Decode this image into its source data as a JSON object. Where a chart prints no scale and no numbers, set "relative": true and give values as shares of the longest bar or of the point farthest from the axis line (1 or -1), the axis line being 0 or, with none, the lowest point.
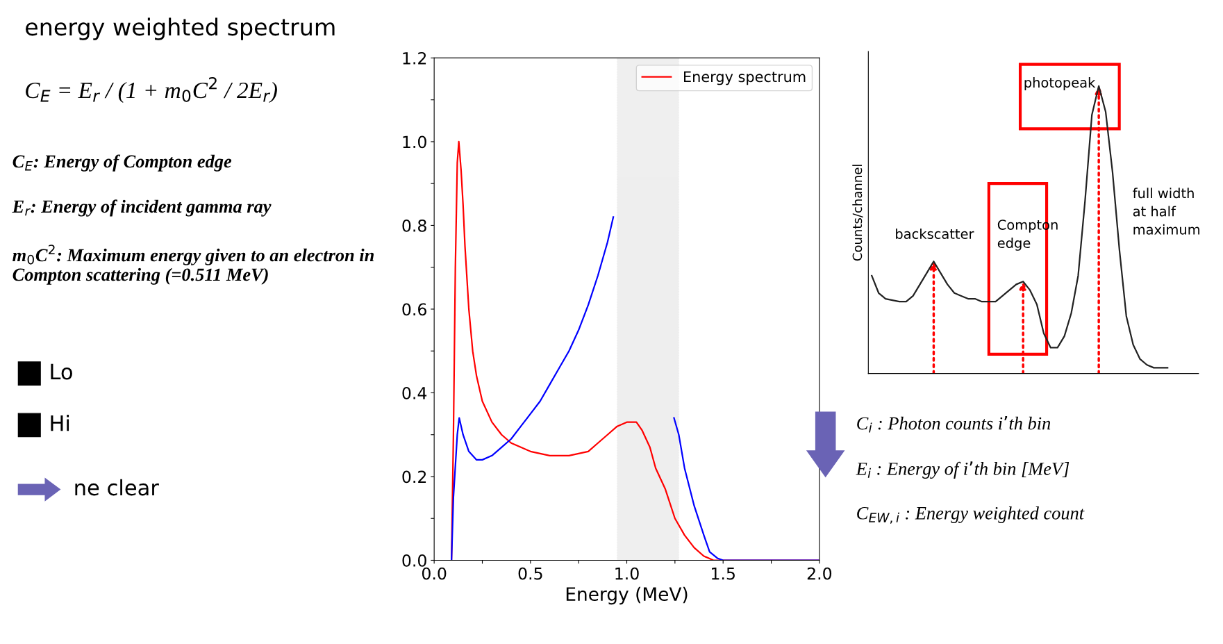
{
  "chart_data": [
    {
      "type": "line",
      "title": "energy weighted spectrum",
      "xlabel": "Energy (MeV)",
      "xlim": [
        0,
        2
      ],
      "ylim": [
        0,
        1.2
      ],
      "xticks": [
        {
          "value": 0,
          "label": "0.0"
        },
        {
          "value": 0.25,
          "label": null
        },
        0.5,
        {
          "value": 0.75,
          "label": null
        },
        {
          "value": 1,
          "label": "1.0"
        },
        {
          "value": 1.25,
          "label": null
        },
        1.5,
        {
          "value": 1.75,
          "label": null
        },
        {
          "value": 2,
          "label": "2.0"
        }
      ],
      "yticks": [
        {
          "value": 0,
          "label": "0.0"
        },
        {
          "value": 0.1,
          "label": null
        },
        0.2,
        {
          "value": 0.3,
          "label": null
        },
        0.4,
        {
          "value": 0.5,
          "label": null
        },
        0.6,
        {
          "value": 0.7,
          "label": null
        },
        0.8,
        {
          "value": 0.9,
          "label": null
        },
        {
          "value": 1,
          "label": "1.0"
        },
        {
          "value": 1.1,
          "label": null
        },
        1.2
      ],
      "legend": "top right",
      "grid": false,
      "marker": "none",
      "line_style": "solid",
      "bands": [
        {
          "axis": "x",
          "from": 0.95,
          "to": 1.27,
          "color": "#333333"
        }
      ],
      "series": [
        {
          "name": "Energy spectrum",
          "color": "#ff0000",
          "x": [
            0.09,
            0.1,
            0.11,
            0.12,
            0.128,
            0.14,
            0.15,
            0.16,
            0.18,
            0.2,
            0.22,
            0.25,
            0.3,
            0.35,
            0.4,
            0.45,
            0.5,
            0.6,
            0.7,
            0.8,
            0.85,
            0.9,
            0.95,
            1.0,
            1.05,
            1.08,
            1.12,
            1.15,
            1.2,
            1.25,
            1.3,
            1.35,
            1.4,
            1.45,
            2.0
          ],
          "values": [
            0,
            0.3,
            0.7,
            0.95,
            1.0,
            0.93,
            0.85,
            0.75,
            0.6,
            0.5,
            0.44,
            0.38,
            0.33,
            0.3,
            0.28,
            0.27,
            0.26,
            0.25,
            0.25,
            0.26,
            0.28,
            0.3,
            0.32,
            0.33,
            0.33,
            0.31,
            0.27,
            0.22,
            0.17,
            0.1,
            0.06,
            0.03,
            0.01,
            0,
            0
          ]
        },
        {
          "color": "#0000ff",
          "x": [
            0.09,
            0.1,
            0.12,
            0.13,
            0.15,
            0.18,
            0.22,
            0.25,
            0.3,
            0.35,
            0.4,
            0.45,
            0.5,
            0.55,
            0.6,
            0.65,
            0.7,
            0.75,
            0.8,
            0.85,
            0.9,
            0.93,
            1.1,
            1.245,
            1.27,
            1.3,
            1.35,
            1.4,
            1.43,
            1.47,
            1.5,
            2.0
          ],
          "values": [
            0,
            0.15,
            0.3,
            0.34,
            0.3,
            0.26,
            0.24,
            0.24,
            0.25,
            0.27,
            0.29,
            0.32,
            0.35,
            0.38,
            0.42,
            0.46,
            0.5,
            0.55,
            0.61,
            0.68,
            0.76,
            0.82,
            null,
            0.34,
            0.3,
            0.22,
            0.13,
            0.06,
            0.02,
            0.005,
            0,
            0
          ]
        }
      ],
      "annotations": [
        "C$_{E}$ = E$_{r}$ / (1 + m$_{0}$C$^{2}$ / 2E$_{r}$)",
        "C$_{E}$: Energy of Compton edge",
        "E$_{r}$: Energy of incident gamma ray",
        "m$_{0}$C$^{2}$: Maximum energy given to an electron in Compton scattering (=0.511 MeV)",
        "Lo",
        "Hi",
        "ne clear",
        "C$_{i}$ : Photon counts i’th bin",
        "E$_{i}$ : Energy of i’th bin [MeV]",
        "C$_{EW,i}$ : Energy weighted count"
      ]
    },
    {
      "type": "line",
      "relative": true,
      "ylabel": "Counts/channel",
      "categories": [
        null,
        null,
        null,
        null,
        null,
        null,
        null,
        null,
        null,
        null,
        null,
        null,
        null,
        null,
        null,
        null,
        null,
        null,
        null,
        null,
        null,
        null,
        null,
        null,
        null,
        null,
        null,
        null,
        null,
        null,
        null,
        null,
        null,
        null,
        null,
        null,
        null,
        null,
        null,
        null,
        null,
        null,
        null,
        null,
        null,
        null,
        null,
        null
      ],
      "series": [
        {
          "color": "#222222",
          "values": [
            0.34,
            0.28,
            0.26,
            0.255,
            0.25,
            0.25,
            0.27,
            0.31,
            0.35,
            0.39,
            0.35,
            0.31,
            0.28,
            0.27,
            0.26,
            0.26,
            0.25,
            0.25,
            0.25,
            0.27,
            0.29,
            0.31,
            0.32,
            0.29,
            0.24,
            0.14,
            0.09,
            0.09,
            0.13,
            0.21,
            0.34,
            0.6,
            0.9,
            1.0,
            0.91,
            0.7,
            0.43,
            0.2,
            0.1,
            0.05,
            0.03,
            0.02,
            0.02,
            0.02,
            null,
            null,
            null,
            null
          ]
        }
      ],
      "annotations": [
        "backscatter",
        "Compton\nedge",
        "photopeak",
        "full width\nat half\nmaximum"
      ]
    }
  ]
}
